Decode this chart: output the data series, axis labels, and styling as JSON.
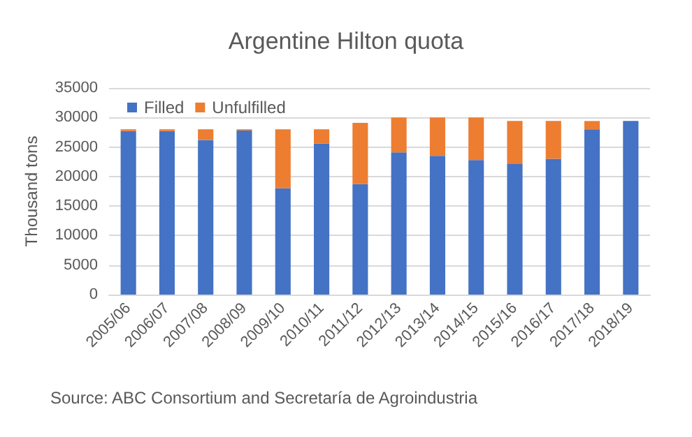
{
  "chart_data": {
    "type": "bar",
    "title": "Argentine Hilton quota",
    "ylabel": "Thousand tons",
    "stacked": true,
    "categories": [
      "2005/06",
      "2006/07",
      "2007/08",
      "2008/09",
      "2009/10",
      "2010/11",
      "2011/12",
      "2012/13",
      "2013/14",
      "2014/15",
      "2015/16",
      "2016/17",
      "2017/18",
      "2018/19"
    ],
    "series": [
      {
        "name": "Filled",
        "color": "#4472c4",
        "values": [
          27700,
          27700,
          26200,
          27800,
          18000,
          25600,
          18700,
          24100,
          23500,
          22800,
          22100,
          23000,
          28000,
          29400
        ]
      },
      {
        "name": "Unfulfilled",
        "color": "#ed7d31",
        "values": [
          300,
          300,
          1800,
          200,
          10000,
          2400,
          10400,
          5900,
          6500,
          7200,
          7300,
          6400,
          1400,
          0
        ]
      }
    ],
    "ylim": [
      0,
      35000
    ],
    "yticks": [
      0,
      5000,
      10000,
      15000,
      20000,
      25000,
      30000,
      35000
    ],
    "grid": "y",
    "legend": "top left",
    "annotations": [
      "Source: ABC Consortium and Secretaría de Agroindustria"
    ]
  }
}
